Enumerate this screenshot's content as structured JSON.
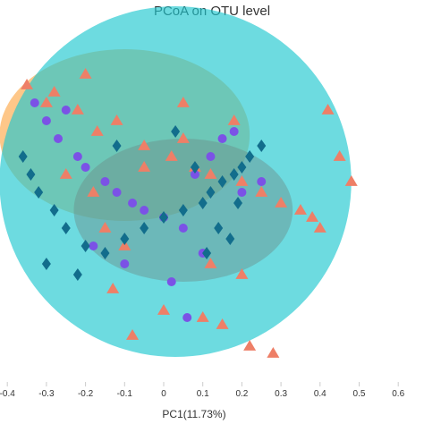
{
  "chart_data": {
    "type": "scatter",
    "title": "PCoA on OTU level",
    "xlabel": "PC1(11.73%)",
    "ylabel": "",
    "xlim": [
      -0.42,
      0.6
    ],
    "x_ticks": [
      "-0.4",
      "-0.3",
      "-0.2",
      "-0.1",
      "0",
      "0.1",
      "0.2",
      "0.3",
      "0.4",
      "0.5",
      "0.6"
    ],
    "grid": false,
    "legend": "none",
    "ellipses": [
      {
        "color": "#fdb462",
        "opacity": 0.75,
        "cx": -0.1,
        "cy": 0.21,
        "rx": 0.32,
        "ry": 0.24
      },
      {
        "color": "#1ec8d0",
        "opacity": 0.65,
        "cx": 0.03,
        "cy": 0.08,
        "rx": 0.45,
        "ry": 0.49
      },
      {
        "color": "#6b8e8a",
        "opacity": 0.45,
        "cx": 0.05,
        "cy": 0.0,
        "rx": 0.28,
        "ry": 0.2
      }
    ],
    "series": [
      {
        "marker": "triangle",
        "color": "#ee7f67",
        "x": [
          -0.35,
          -0.3,
          -0.28,
          -0.2,
          -0.22,
          -0.17,
          -0.12,
          -0.05,
          0.02,
          0.05,
          0.08,
          0.12,
          0.2,
          0.25,
          0.3,
          0.35,
          0.38,
          0.4,
          0.42,
          0.45,
          0.48,
          -0.1,
          -0.15,
          0.1,
          0.0,
          -0.08,
          0.15,
          0.22,
          0.28,
          -0.25,
          -0.18,
          0.05,
          0.18,
          -0.05,
          0.12,
          0.2,
          -0.13
        ],
        "y": [
          0.35,
          0.3,
          0.33,
          0.38,
          0.28,
          0.22,
          0.25,
          0.18,
          0.15,
          0.2,
          0.12,
          0.1,
          0.08,
          0.05,
          0.02,
          0.0,
          -0.02,
          -0.05,
          0.28,
          0.15,
          0.08,
          -0.1,
          -0.05,
          -0.3,
          -0.28,
          -0.35,
          -0.32,
          -0.38,
          -0.4,
          0.1,
          0.05,
          0.3,
          0.25,
          0.12,
          -0.15,
          -0.18,
          -0.22
        ]
      },
      {
        "marker": "circle",
        "color": "#7b52e6",
        "x": [
          -0.33,
          -0.3,
          -0.27,
          -0.22,
          -0.2,
          -0.15,
          -0.12,
          -0.08,
          -0.05,
          0.0,
          0.05,
          0.08,
          0.12,
          0.15,
          0.18,
          -0.18,
          -0.1,
          0.02,
          0.1,
          0.2,
          0.25,
          -0.25,
          0.06
        ],
        "y": [
          0.3,
          0.25,
          0.2,
          0.15,
          0.12,
          0.08,
          0.05,
          0.02,
          0.0,
          -0.02,
          -0.05,
          0.1,
          0.15,
          0.2,
          0.22,
          -0.1,
          -0.15,
          -0.2,
          -0.12,
          0.05,
          0.08,
          0.28,
          -0.3
        ]
      },
      {
        "marker": "diamond",
        "color": "#126d8c",
        "x": [
          -0.36,
          -0.34,
          -0.32,
          -0.28,
          -0.25,
          -0.2,
          -0.15,
          -0.1,
          -0.05,
          0.0,
          0.05,
          0.1,
          0.12,
          0.15,
          0.18,
          0.2,
          0.22,
          0.25,
          -0.3,
          -0.22,
          0.08,
          0.14,
          0.17,
          -0.12,
          0.03,
          0.11,
          0.19
        ],
        "y": [
          0.15,
          0.1,
          0.05,
          0.0,
          -0.05,
          -0.1,
          -0.12,
          -0.08,
          -0.05,
          -0.02,
          0.0,
          0.02,
          0.05,
          0.08,
          0.1,
          0.12,
          0.15,
          0.18,
          -0.15,
          -0.18,
          0.12,
          -0.05,
          -0.08,
          0.18,
          0.22,
          -0.12,
          0.02
        ]
      }
    ]
  }
}
